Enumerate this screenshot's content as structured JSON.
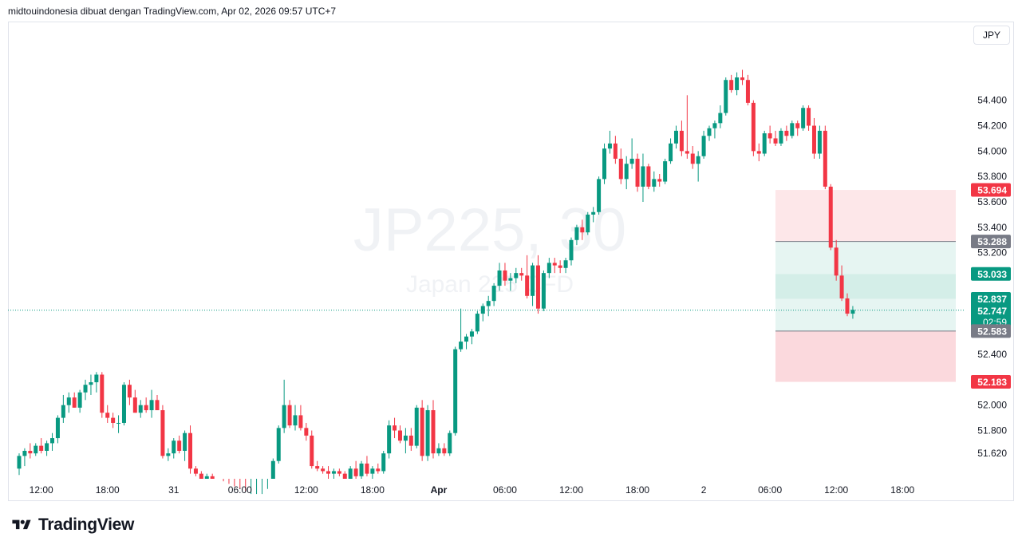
{
  "header": {
    "attribution": "midtouindonesia dibuat dengan TradingView.com, Apr 02, 2026 09:57 UTC+7"
  },
  "currency": "JPY",
  "watermark": {
    "symbol": "JP225, 30",
    "description": "Japan 225 CFD"
  },
  "footer": {
    "brand": "TradingView"
  },
  "colors": {
    "up": "#089981",
    "down": "#f23645",
    "grid_text": "#131722",
    "gray_label": "#787b86"
  },
  "chart_data": {
    "type": "candlestick",
    "symbol": "JP225",
    "timeframe": "30",
    "y_axis": {
      "ticks": [
        51.62,
        51.8,
        52.0,
        52.4,
        53.2,
        53.4,
        53.6,
        53.8,
        54.0,
        54.2,
        54.4
      ],
      "tick_labels": [
        "51.620",
        "51.800",
        "52.000",
        "52.400",
        "53.200",
        "53.400",
        "53.600",
        "53.800",
        "54.000",
        "54.200",
        "54.400"
      ],
      "ylim": [
        51.42,
        55.02
      ]
    },
    "x_axis": {
      "ticks": [
        {
          "label": "12:00",
          "index": 4
        },
        {
          "label": "18:00",
          "index": 16
        },
        {
          "label": "31",
          "index": 28
        },
        {
          "label": "06:00",
          "index": 40
        },
        {
          "label": "12:00",
          "index": 52
        },
        {
          "label": "18:00",
          "index": 64
        },
        {
          "label": "Apr",
          "index": 76
        },
        {
          "label": "06:00",
          "index": 88
        },
        {
          "label": "12:00",
          "index": 100
        },
        {
          "label": "18:00",
          "index": 112
        },
        {
          "label": "2",
          "index": 124
        },
        {
          "label": "06:00",
          "index": 136
        },
        {
          "label": "12:00",
          "index": 148
        },
        {
          "label": "18:00",
          "index": 160
        }
      ]
    },
    "candles": [
      [
        51.5,
        51.62,
        51.45,
        51.6
      ],
      [
        51.6,
        51.66,
        51.52,
        51.64
      ],
      [
        51.64,
        51.7,
        51.58,
        51.62
      ],
      [
        51.62,
        51.7,
        51.6,
        51.68
      ],
      [
        51.68,
        51.74,
        51.62,
        51.64
      ],
      [
        51.64,
        51.72,
        51.6,
        51.7
      ],
      [
        51.7,
        51.78,
        51.64,
        51.74
      ],
      [
        51.74,
        51.92,
        51.7,
        51.9
      ],
      [
        51.9,
        52.08,
        51.86,
        52.0
      ],
      [
        52.0,
        52.1,
        51.94,
        52.06
      ],
      [
        52.06,
        52.1,
        51.98,
        51.98
      ],
      [
        51.98,
        52.12,
        51.94,
        52.1
      ],
      [
        52.1,
        52.2,
        52.04,
        52.16
      ],
      [
        52.16,
        52.24,
        52.08,
        52.18
      ],
      [
        52.18,
        52.26,
        52.1,
        52.24
      ],
      [
        52.24,
        52.26,
        51.9,
        51.94
      ],
      [
        51.94,
        52.0,
        51.86,
        51.9
      ],
      [
        51.9,
        51.94,
        51.82,
        51.86
      ],
      [
        51.86,
        51.92,
        51.78,
        51.86
      ],
      [
        51.86,
        52.18,
        51.84,
        52.16
      ],
      [
        52.16,
        52.2,
        52.0,
        52.06
      ],
      [
        52.06,
        52.12,
        51.94,
        51.94
      ],
      [
        51.94,
        52.04,
        51.9,
        52.0
      ],
      [
        52.0,
        52.06,
        51.94,
        51.96
      ],
      [
        51.96,
        52.12,
        51.9,
        52.04
      ],
      [
        52.04,
        52.08,
        51.96,
        51.96
      ],
      [
        51.96,
        52.0,
        51.58,
        51.6
      ],
      [
        51.6,
        51.66,
        51.56,
        51.62
      ],
      [
        51.62,
        51.74,
        51.58,
        51.72
      ],
      [
        51.72,
        51.76,
        51.62,
        51.64
      ],
      [
        51.64,
        51.8,
        51.56,
        51.78
      ],
      [
        51.78,
        51.84,
        51.46,
        51.5
      ],
      [
        51.5,
        51.52,
        51.44,
        51.46
      ],
      [
        51.46,
        51.48,
        51.4,
        51.42
      ],
      [
        51.42,
        51.46,
        51.38,
        51.44
      ],
      [
        51.44,
        51.46,
        51.38,
        51.4
      ],
      [
        51.4,
        51.42,
        51.36,
        51.38
      ],
      [
        51.38,
        51.4,
        51.34,
        51.36
      ],
      [
        51.36,
        51.38,
        51.32,
        51.34
      ],
      [
        51.34,
        51.36,
        51.3,
        51.32
      ],
      [
        51.32,
        51.34,
        51.28,
        51.3
      ],
      [
        51.3,
        51.32,
        51.26,
        51.28
      ],
      [
        51.28,
        51.3,
        51.26,
        51.28
      ],
      [
        51.28,
        51.3,
        51.26,
        51.28
      ],
      [
        51.28,
        51.3,
        51.24,
        51.28
      ],
      [
        51.28,
        51.34,
        51.24,
        51.32
      ],
      [
        51.32,
        51.58,
        51.3,
        51.56
      ],
      [
        51.56,
        51.84,
        51.54,
        51.82
      ],
      [
        51.82,
        52.2,
        51.78,
        52.0
      ],
      [
        52.0,
        52.04,
        51.82,
        51.84
      ],
      [
        51.84,
        52.0,
        51.8,
        51.92
      ],
      [
        51.92,
        52.0,
        51.8,
        51.82
      ],
      [
        51.82,
        51.86,
        51.72,
        51.76
      ],
      [
        51.76,
        51.8,
        51.5,
        51.52
      ],
      [
        51.52,
        51.56,
        51.48,
        51.5
      ],
      [
        51.5,
        51.52,
        51.46,
        51.48
      ],
      [
        51.48,
        51.52,
        51.4,
        51.46
      ],
      [
        51.46,
        51.5,
        51.42,
        51.48
      ],
      [
        51.48,
        51.5,
        51.44,
        51.46
      ],
      [
        51.46,
        51.48,
        51.4,
        51.42
      ],
      [
        51.42,
        51.52,
        51.4,
        51.5
      ],
      [
        51.5,
        51.56,
        51.4,
        51.44
      ],
      [
        51.44,
        51.56,
        51.4,
        51.54
      ],
      [
        51.54,
        51.6,
        51.44,
        51.46
      ],
      [
        51.46,
        51.52,
        51.42,
        51.5
      ],
      [
        51.5,
        51.54,
        51.46,
        51.48
      ],
      [
        51.48,
        51.64,
        51.46,
        51.62
      ],
      [
        51.62,
        51.88,
        51.58,
        51.84
      ],
      [
        51.84,
        51.9,
        51.74,
        51.8
      ],
      [
        51.8,
        51.84,
        51.7,
        51.72
      ],
      [
        51.72,
        51.82,
        51.62,
        51.76
      ],
      [
        51.76,
        51.82,
        51.64,
        51.68
      ],
      [
        51.68,
        52.0,
        51.66,
        51.98
      ],
      [
        51.98,
        52.04,
        51.56,
        51.6
      ],
      [
        51.6,
        52.0,
        51.56,
        51.96
      ],
      [
        51.96,
        52.04,
        51.58,
        51.62
      ],
      [
        51.62,
        51.7,
        51.6,
        51.66
      ],
      [
        51.66,
        51.7,
        51.6,
        51.62
      ],
      [
        51.62,
        51.8,
        51.6,
        51.78
      ],
      [
        51.78,
        52.46,
        51.76,
        52.44
      ],
      [
        52.44,
        52.76,
        52.42,
        52.5
      ],
      [
        52.5,
        52.56,
        52.44,
        52.54
      ],
      [
        52.54,
        52.6,
        52.48,
        52.58
      ],
      [
        52.58,
        52.74,
        52.56,
        52.72
      ],
      [
        52.72,
        52.8,
        52.66,
        52.78
      ],
      [
        52.78,
        52.86,
        52.7,
        52.82
      ],
      [
        52.82,
        52.96,
        52.78,
        52.94
      ],
      [
        52.94,
        53.12,
        52.9,
        53.06
      ],
      [
        53.06,
        53.12,
        52.94,
        52.98
      ],
      [
        52.98,
        53.04,
        52.9,
        53.0
      ],
      [
        53.0,
        53.08,
        52.96,
        53.04
      ],
      [
        53.04,
        53.08,
        52.98,
        53.02
      ],
      [
        53.02,
        53.18,
        52.84,
        52.86
      ],
      [
        52.86,
        53.12,
        52.78,
        53.1
      ],
      [
        53.1,
        53.18,
        52.72,
        52.76
      ],
      [
        52.76,
        53.06,
        52.74,
        53.04
      ],
      [
        53.04,
        53.16,
        53.0,
        53.12
      ],
      [
        53.12,
        53.16,
        53.04,
        53.1
      ],
      [
        53.1,
        53.14,
        53.04,
        53.08
      ],
      [
        53.08,
        53.16,
        53.04,
        53.14
      ],
      [
        53.14,
        53.32,
        53.1,
        53.3
      ],
      [
        53.3,
        53.42,
        53.26,
        53.4
      ],
      [
        53.4,
        53.46,
        53.3,
        53.36
      ],
      [
        53.36,
        53.52,
        53.34,
        53.5
      ],
      [
        53.5,
        53.56,
        53.44,
        53.52
      ],
      [
        53.52,
        53.8,
        53.5,
        53.78
      ],
      [
        53.78,
        54.06,
        53.74,
        54.02
      ],
      [
        54.02,
        54.16,
        53.98,
        54.06
      ],
      [
        54.06,
        54.12,
        53.9,
        53.94
      ],
      [
        53.94,
        54.02,
        53.74,
        53.78
      ],
      [
        53.78,
        53.96,
        53.7,
        53.9
      ],
      [
        53.9,
        54.1,
        53.86,
        53.94
      ],
      [
        53.94,
        53.98,
        53.68,
        53.72
      ],
      [
        53.72,
        53.98,
        53.6,
        53.88
      ],
      [
        53.88,
        53.9,
        53.7,
        53.72
      ],
      [
        53.72,
        53.84,
        53.68,
        53.78
      ],
      [
        53.78,
        53.82,
        53.72,
        53.76
      ],
      [
        53.76,
        53.94,
        53.74,
        53.92
      ],
      [
        53.92,
        54.1,
        53.9,
        54.06
      ],
      [
        54.06,
        54.2,
        54.02,
        54.16
      ],
      [
        54.16,
        54.24,
        53.96,
        54.0
      ],
      [
        54.0,
        54.44,
        53.94,
        53.98
      ],
      [
        53.98,
        54.04,
        53.86,
        53.9
      ],
      [
        53.9,
        54.0,
        53.76,
        53.96
      ],
      [
        53.96,
        54.16,
        53.94,
        54.12
      ],
      [
        54.12,
        54.2,
        54.08,
        54.18
      ],
      [
        54.18,
        54.24,
        54.1,
        54.22
      ],
      [
        54.22,
        54.36,
        54.18,
        54.3
      ],
      [
        54.3,
        54.58,
        54.28,
        54.56
      ],
      [
        54.56,
        54.6,
        54.46,
        54.48
      ],
      [
        54.48,
        54.62,
        54.44,
        54.58
      ],
      [
        54.58,
        54.64,
        54.52,
        54.56
      ],
      [
        54.56,
        54.6,
        54.36,
        54.38
      ],
      [
        54.38,
        54.4,
        53.96,
        54.0
      ],
      [
        54.0,
        54.06,
        53.92,
        53.98
      ],
      [
        53.98,
        54.16,
        53.96,
        54.14
      ],
      [
        54.14,
        54.2,
        54.06,
        54.1
      ],
      [
        54.1,
        54.16,
        54.04,
        54.06
      ],
      [
        54.06,
        54.18,
        54.04,
        54.16
      ],
      [
        54.16,
        54.2,
        54.08,
        54.12
      ],
      [
        54.12,
        54.24,
        54.1,
        54.22
      ],
      [
        54.22,
        54.24,
        54.12,
        54.18
      ],
      [
        54.18,
        54.36,
        54.16,
        54.34
      ],
      [
        54.34,
        54.36,
        54.16,
        54.2
      ],
      [
        54.2,
        54.26,
        53.94,
        53.98
      ],
      [
        53.98,
        54.2,
        53.94,
        54.16
      ],
      [
        54.16,
        54.2,
        53.7,
        53.72
      ],
      [
        53.72,
        53.74,
        53.22,
        53.24
      ],
      [
        53.24,
        53.3,
        52.98,
        53.02
      ],
      [
        53.02,
        53.1,
        52.82,
        52.84
      ],
      [
        52.84,
        52.88,
        52.7,
        52.72
      ],
      [
        52.72,
        52.78,
        52.68,
        52.75
      ]
    ],
    "position": {
      "entry": 53.288,
      "target_1": 53.033,
      "target_2": 52.837,
      "stop_price": 52.583,
      "upper_zone_top": 53.694,
      "lower_zone_bottom": 52.183
    },
    "labels": {
      "upper": "53.694",
      "entry": "53.288",
      "t1": "53.033",
      "t2": "52.837",
      "current": "52.747",
      "countdown": "02:59",
      "stop": "52.583",
      "lower": "52.183"
    },
    "last_price": 52.747
  }
}
